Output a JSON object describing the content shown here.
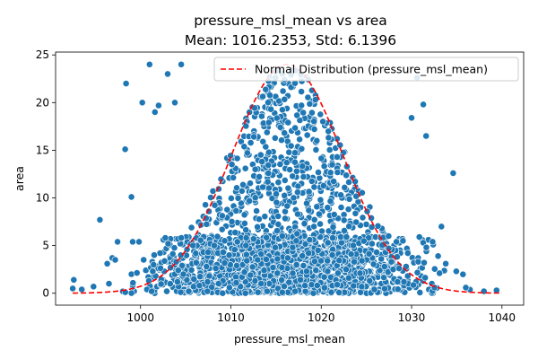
{
  "chart_data": {
    "type": "scatter",
    "title": "pressure_msl_mean vs area",
    "subtitle": "Mean: 1016.2353, Std: 6.1396",
    "xlabel": "pressure_msl_mean",
    "ylabel": "area",
    "xlim": [
      990.6,
      1042.4
    ],
    "ylim": [
      -1.25,
      25.3
    ],
    "xticks": [
      1000,
      1010,
      1020,
      1030,
      1040
    ],
    "yticks": [
      0,
      5,
      10,
      15,
      20,
      25
    ],
    "tick_labels_x": [
      "1000",
      "1010",
      "1020",
      "1030",
      "1040"
    ],
    "tick_labels_y": [
      "0",
      "5",
      "10",
      "15",
      "20",
      "25"
    ],
    "grid": false,
    "legend": {
      "placement": "top-right",
      "entries": [
        "Normal Distribution (pressure_msl_mean)"
      ]
    },
    "point_color": "#1f77b4",
    "curve_color": "#ff0000",
    "series": [
      {
        "type": "scatter",
        "x_min": 992.5,
        "x_max": 1040.0,
        "y_min": 0,
        "y_max": 24.0,
        "outliers": [
          [
            995.5,
            7.7
          ],
          [
            998.4,
            22.0
          ],
          [
            998.3,
            15.1
          ],
          [
            999.0,
            10.1
          ],
          [
            1000.2,
            20.0
          ],
          [
            1001.0,
            24.0
          ],
          [
            1001.6,
            19.0
          ],
          [
            1002.0,
            19.7
          ],
          [
            1003.0,
            23.0
          ],
          [
            1003.8,
            20.0
          ],
          [
            1004.5,
            24.0
          ],
          [
            1031.3,
            19.8
          ],
          [
            1031.6,
            16.5
          ],
          [
            1030.0,
            18.4
          ],
          [
            1033.3,
            7.0
          ],
          [
            1034.6,
            12.6
          ],
          [
            1030.6,
            22.6
          ],
          [
            1036.0,
            0.6
          ],
          [
            1038.0,
            0.2
          ],
          [
            1039.4,
            0.3
          ],
          [
            992.5,
            0.5
          ],
          [
            993.5,
            0.4
          ],
          [
            994.8,
            0.7
          ],
          [
            996.5,
            1.0
          ],
          [
            997.2,
            3.5
          ]
        ]
      },
      {
        "type": "line",
        "name": "Normal Distribution (pressure_msl_mean)",
        "style": "dashed",
        "mean": 1016.2353,
        "std": 6.1396,
        "x_range": [
          992.5,
          1040.0
        ],
        "peak": 24.0
      }
    ]
  }
}
